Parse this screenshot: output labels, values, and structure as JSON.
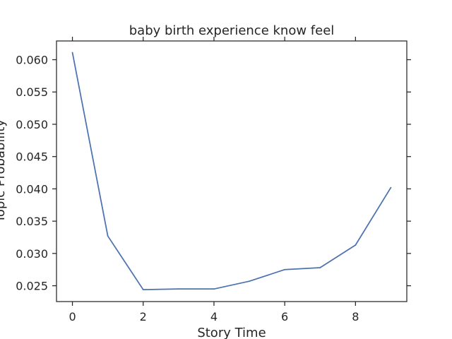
{
  "chart_data": {
    "type": "line",
    "title": "baby birth experience know feel",
    "xlabel": "Story Time",
    "ylabel": "Topic Probability",
    "xlim": [
      -0.45,
      9.45
    ],
    "ylim": [
      0.02255,
      0.0629
    ],
    "xticks": [
      0,
      2,
      4,
      6,
      8
    ],
    "yticks": [
      0.025,
      0.03,
      0.035,
      0.04,
      0.045,
      0.05,
      0.055,
      0.06
    ],
    "xtick_labels": [
      "0",
      "2",
      "4",
      "6",
      "8"
    ],
    "ytick_labels": [
      "0.025",
      "0.030",
      "0.035",
      "0.040",
      "0.045",
      "0.050",
      "0.055",
      "0.060"
    ],
    "grid": false,
    "series": [
      {
        "color": "#4c72b0",
        "x": [
          0,
          1,
          2,
          3,
          4,
          5,
          6,
          7,
          8,
          9
        ],
        "y": [
          0.0611,
          0.0327,
          0.0244,
          0.0245,
          0.0245,
          0.0257,
          0.0275,
          0.0278,
          0.0313,
          0.0402
        ]
      }
    ]
  }
}
